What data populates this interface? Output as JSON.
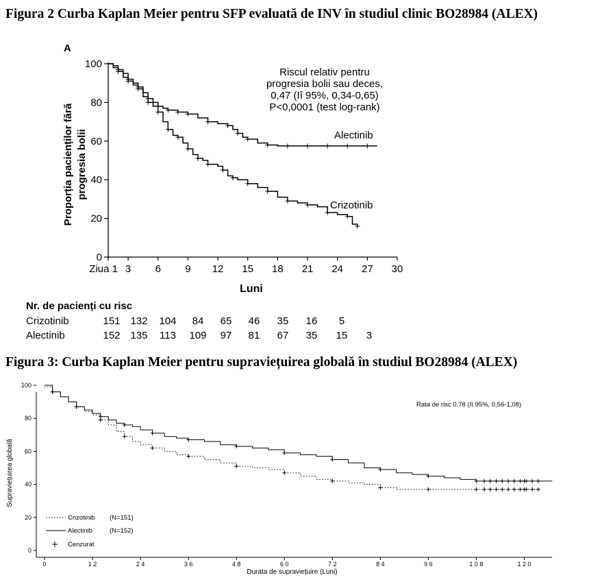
{
  "figure2_title": "Figura 2 Curba Kaplan Meier pentru SFP evaluată de INV în studiul clinic BO28984 (ALEX)",
  "figure3_title": "Figura 3: Curba Kaplan Meier pentru supraviețuirea globală în studiul BO28984 (ALEX)",
  "risk_table": {
    "header": "Nr. de pacienți cu risc",
    "rows": [
      {
        "label": "Crizotinib",
        "values": [
          "151",
          "132",
          "104",
          "84",
          "65",
          "46",
          "35",
          "16",
          "5"
        ]
      },
      {
        "label": "Alectinib",
        "values": [
          "152",
          "135",
          "113",
          "109",
          "97",
          "81",
          "67",
          "35",
          "15",
          "3"
        ]
      }
    ]
  },
  "chart_data": [
    {
      "type": "line",
      "panel_label": "A",
      "xlabel": "Luni",
      "ylabel": "Proporția pacienților fără progresia bolii",
      "xlim": [
        1,
        30
      ],
      "ylim": [
        0,
        100
      ],
      "x_ticks": [
        "Ziua 1",
        "3",
        "6",
        "9",
        "12",
        "15",
        "18",
        "21",
        "24",
        "27",
        "30"
      ],
      "x_tick_values": [
        1,
        3,
        6,
        9,
        12,
        15,
        18,
        21,
        24,
        27,
        30
      ],
      "y_ticks": [
        0,
        20,
        40,
        60,
        80,
        100
      ],
      "annotation": [
        "Riscul relativ pentru",
        "progresia bolii sau deces,",
        "0,47 (Iî 95%, 0,34-0,65)",
        "P<0,0001 (test log-rank)"
      ],
      "grid": false,
      "series": [
        {
          "name": "Alectinib",
          "style": "solid",
          "color": "#000000",
          "x": [
            1,
            1.5,
            2,
            2.5,
            3,
            3.5,
            4,
            4.5,
            5,
            5.5,
            6,
            6.5,
            7,
            7.5,
            8,
            8.5,
            9,
            10,
            11,
            12,
            13,
            13.5,
            14,
            14.5,
            15,
            16,
            17,
            18,
            19,
            20,
            21,
            22,
            23,
            24,
            25,
            26,
            27,
            28
          ],
          "y": [
            100,
            99,
            97,
            95,
            92,
            90,
            88,
            85,
            82,
            80,
            78,
            77,
            76,
            76,
            75,
            75,
            74,
            72,
            70,
            69,
            68,
            66,
            64,
            62,
            61,
            59,
            58,
            57.5,
            57.5,
            57.5,
            57.5,
            57.5,
            57.5,
            57.5,
            57.5,
            57.5,
            57.5,
            57.5
          ]
        },
        {
          "name": "Crizotinib",
          "style": "solid",
          "color": "#000000",
          "x": [
            1,
            1.5,
            2,
            2.5,
            3,
            3.5,
            4,
            4.5,
            5,
            5.5,
            6,
            6.5,
            7,
            7.5,
            8,
            8.5,
            9,
            9.5,
            10,
            10.5,
            11,
            12,
            12.5,
            13,
            13.5,
            14,
            15,
            16,
            17,
            18,
            19,
            20,
            21,
            22,
            23,
            24,
            25,
            25.5,
            26
          ],
          "y": [
            100,
            98,
            96,
            93,
            91,
            89,
            87,
            83,
            80,
            78,
            75,
            70,
            66,
            63,
            62,
            59,
            56,
            53,
            51,
            50,
            48,
            47,
            45,
            42,
            41,
            40,
            38,
            36,
            34,
            31,
            29,
            28,
            27,
            26,
            23,
            22,
            21,
            17,
            16
          ]
        }
      ]
    },
    {
      "type": "line",
      "xlabel": "Durata de supraviețuire (Luni)",
      "ylabel": "Supraviețuirea globală",
      "xlim": [
        0,
        129
      ],
      "ylim": [
        0,
        100
      ],
      "x_ticks": [
        0,
        12,
        24,
        36,
        48,
        60,
        72,
        84,
        96,
        108,
        120
      ],
      "x_tick_labels": [
        "0",
        "1 2",
        "2 4",
        "3 6",
        "4 8",
        "6 0",
        "7 2",
        "8 4",
        "9 6",
        "1 0 8",
        "1 2 0"
      ],
      "y_ticks": [
        0,
        20,
        40,
        60,
        80,
        100
      ],
      "annotation": "Rata de risc 0,78 (Iî 95%, 0,56-1,08)",
      "legend": {
        "position": "bottom-left",
        "entries": [
          {
            "label": "Crizotinib",
            "n": "(N=151)",
            "style": "dotted"
          },
          {
            "label": "Alectinib",
            "n": "(N=152)",
            "style": "solid"
          },
          {
            "label": "Cenzurat",
            "style": "plus"
          }
        ]
      },
      "grid": false,
      "series": [
        {
          "name": "Alectinib",
          "style": "solid",
          "color": "#000000",
          "x": [
            0,
            2,
            4,
            6,
            8,
            10,
            12,
            14,
            16,
            18,
            20,
            22,
            24,
            27,
            30,
            33,
            36,
            40,
            44,
            48,
            52,
            56,
            60,
            64,
            68,
            72,
            76,
            80,
            84,
            88,
            92,
            96,
            100,
            104,
            108,
            112,
            116,
            120,
            124,
            127
          ],
          "y": [
            100,
            96,
            93,
            90,
            87,
            85,
            83,
            81,
            79,
            77,
            76,
            75,
            73,
            71,
            69,
            68,
            67,
            66,
            64,
            63,
            62,
            61,
            59,
            58,
            57,
            55,
            53,
            50,
            49,
            47,
            46,
            45,
            44,
            43,
            42,
            42,
            42,
            42,
            42,
            42
          ]
        },
        {
          "name": "Crizotinib",
          "style": "dotted",
          "color": "#000000",
          "x": [
            0,
            2,
            4,
            6,
            8,
            10,
            12,
            14,
            16,
            18,
            20,
            22,
            24,
            27,
            30,
            33,
            36,
            40,
            44,
            48,
            52,
            56,
            60,
            64,
            68,
            72,
            76,
            80,
            84,
            88,
            92,
            96,
            100,
            104,
            108,
            112,
            116,
            120,
            124
          ],
          "y": [
            99,
            96,
            93,
            90,
            87,
            84,
            82,
            79,
            76,
            72,
            69,
            66,
            64,
            62,
            60,
            58,
            57,
            55,
            53,
            51,
            50,
            49,
            47,
            45,
            43,
            42,
            41,
            40,
            38,
            37,
            37,
            37,
            37,
            37,
            37,
            37,
            37,
            37,
            37
          ]
        }
      ]
    }
  ]
}
